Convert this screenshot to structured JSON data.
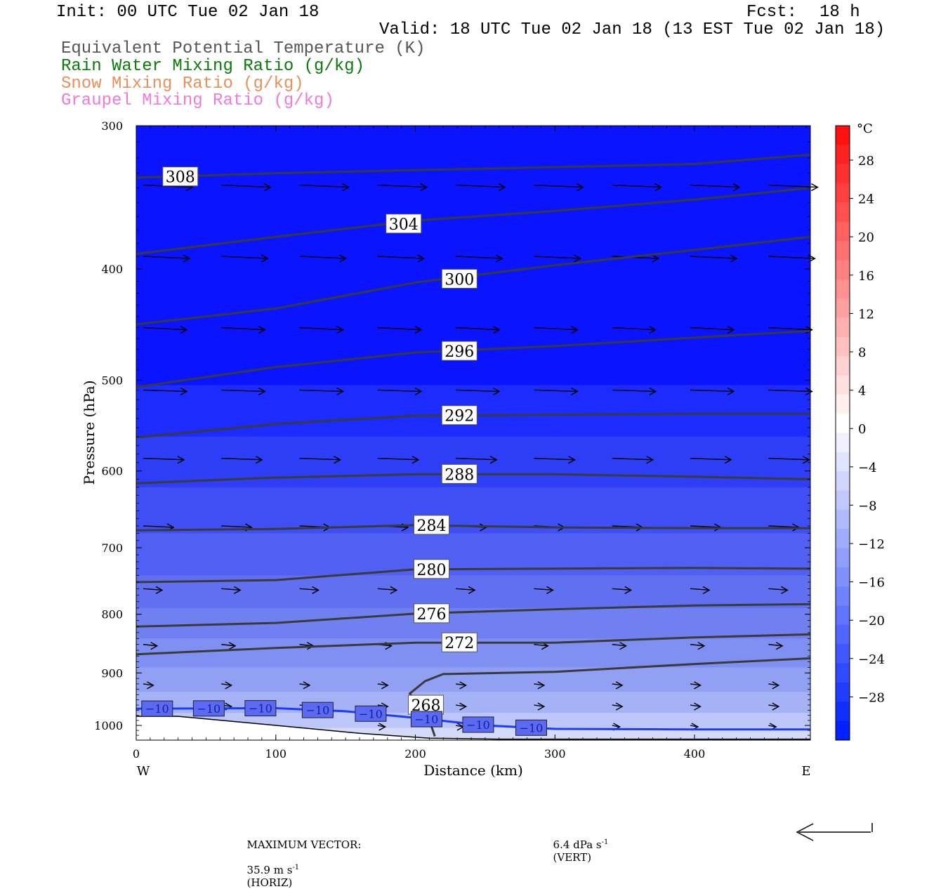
{
  "header": {
    "init": "Init: 00 UTC Tue 02 Jan 18",
    "fcst_label": "Fcst:",
    "fcst_value": "18 h",
    "valid": "Valid: 18 UTC Tue 02 Jan 18 (13 EST Tue 02 Jan 18)",
    "legend": [
      {
        "label": "Equivalent Potential Temperature (K)",
        "color": "#555555"
      },
      {
        "label": "Rain Water Mixing Ratio (g/kg)",
        "color": "#0a7a0a"
      },
      {
        "label": "Snow Mixing Ratio (g/kg)",
        "color": "#e8905a"
      },
      {
        "label": "Graupel Mixing Ratio (g/kg)",
        "color": "#f07ad8"
      }
    ]
  },
  "footer": {
    "max_vector_label": "MAXIMUM VECTOR:",
    "horiz": "35.9 m s",
    "horiz_exp": "-1",
    "horiz_tag": "(HORIZ)",
    "vert": "6.4 dPa s",
    "vert_exp": "-1",
    "vert_tag": "(VERT)"
  },
  "chart_data": {
    "type": "cross-section",
    "xlabel": "Distance (km)",
    "ylabel": "Pressure (hPa)",
    "xlim": [
      0,
      483
    ],
    "ylim": [
      1030,
      300
    ],
    "y_scale": "log",
    "x_ticks": [
      "0",
      "100",
      "200",
      "300",
      "400"
    ],
    "y_ticks": [
      "300",
      "400",
      "500",
      "600",
      "700",
      "800",
      "900",
      "1000"
    ],
    "x_end_labels": {
      "left": "W",
      "right": "E"
    },
    "colorbar": {
      "unit": "°C",
      "labels": [
        "28",
        "24",
        "20",
        "16",
        "12",
        "8",
        "4",
        "0",
        "−4",
        "−8",
        "−12",
        "−16",
        "−20",
        "−24",
        "−28"
      ]
    },
    "theta_e_contours": [
      {
        "value": 308,
        "label": "308",
        "x": [
          0,
          100,
          200,
          300,
          400,
          483
        ],
        "y": [
          333,
          330,
          328,
          326,
          324,
          318
        ]
      },
      {
        "value": 304,
        "label": "304",
        "x": [
          0,
          100,
          200,
          300,
          400,
          483
        ],
        "y": [
          388,
          375,
          363,
          356,
          348,
          340
        ]
      },
      {
        "value": 300,
        "label": "300",
        "x": [
          0,
          100,
          200,
          300,
          400,
          483
        ],
        "y": [
          447,
          433,
          411,
          397,
          385,
          375
        ]
      },
      {
        "value": 296,
        "label": "296",
        "x": [
          0,
          100,
          200,
          300,
          400,
          483
        ],
        "y": [
          507,
          487,
          473,
          467,
          459,
          453
        ]
      },
      {
        "value": 292,
        "label": "292",
        "x": [
          0,
          100,
          200,
          300,
          400,
          483
        ],
        "y": [
          561,
          546,
          537,
          536,
          535,
          535
        ]
      },
      {
        "value": 288,
        "label": "288",
        "x": [
          0,
          100,
          200,
          300,
          400,
          483
        ],
        "y": [
          615,
          608,
          604,
          604,
          607,
          610
        ]
      },
      {
        "value": 284,
        "label": "284",
        "x": [
          0,
          100,
          200,
          300,
          400,
          483
        ],
        "y": [
          676,
          674,
          669,
          672,
          673,
          673
        ]
      },
      {
        "value": 280,
        "label": "280",
        "x": [
          0,
          100,
          200,
          300,
          400,
          483
        ],
        "y": [
          750,
          747,
          731,
          730,
          729,
          730
        ]
      },
      {
        "value": 276,
        "label": "276",
        "x": [
          0,
          100,
          200,
          300,
          400,
          483
        ],
        "y": [
          820,
          814,
          799,
          792,
          786,
          784
        ]
      },
      {
        "value": 272,
        "label": "272",
        "x": [
          0,
          100,
          200,
          300,
          400,
          483
        ],
        "y": [
          867,
          856,
          847,
          847,
          838,
          833
        ]
      },
      {
        "value": 268,
        "label": "268",
        "x": [
          214,
          210,
          196,
          207,
          220,
          300,
          400,
          483
        ],
        "y": [
          1022,
          990,
          938,
          915,
          902,
          898,
          884,
          874
        ]
      }
    ],
    "temperature_contour": {
      "value": -10,
      "label": "−10",
      "color": "#1a3cff",
      "x": [
        0,
        100,
        150,
        200,
        250,
        300,
        400,
        483
      ],
      "y": [
        967,
        966,
        972,
        985,
        1000,
        1007,
        1008,
        1008
      ]
    },
    "terrain": {
      "x": [
        0,
        30,
        100,
        160,
        210,
        260,
        483
      ],
      "y": [
        982,
        982,
        1000,
        1016,
        1026,
        1028,
        1028
      ]
    },
    "wind_vectors_max": "35.9 m s-1"
  }
}
